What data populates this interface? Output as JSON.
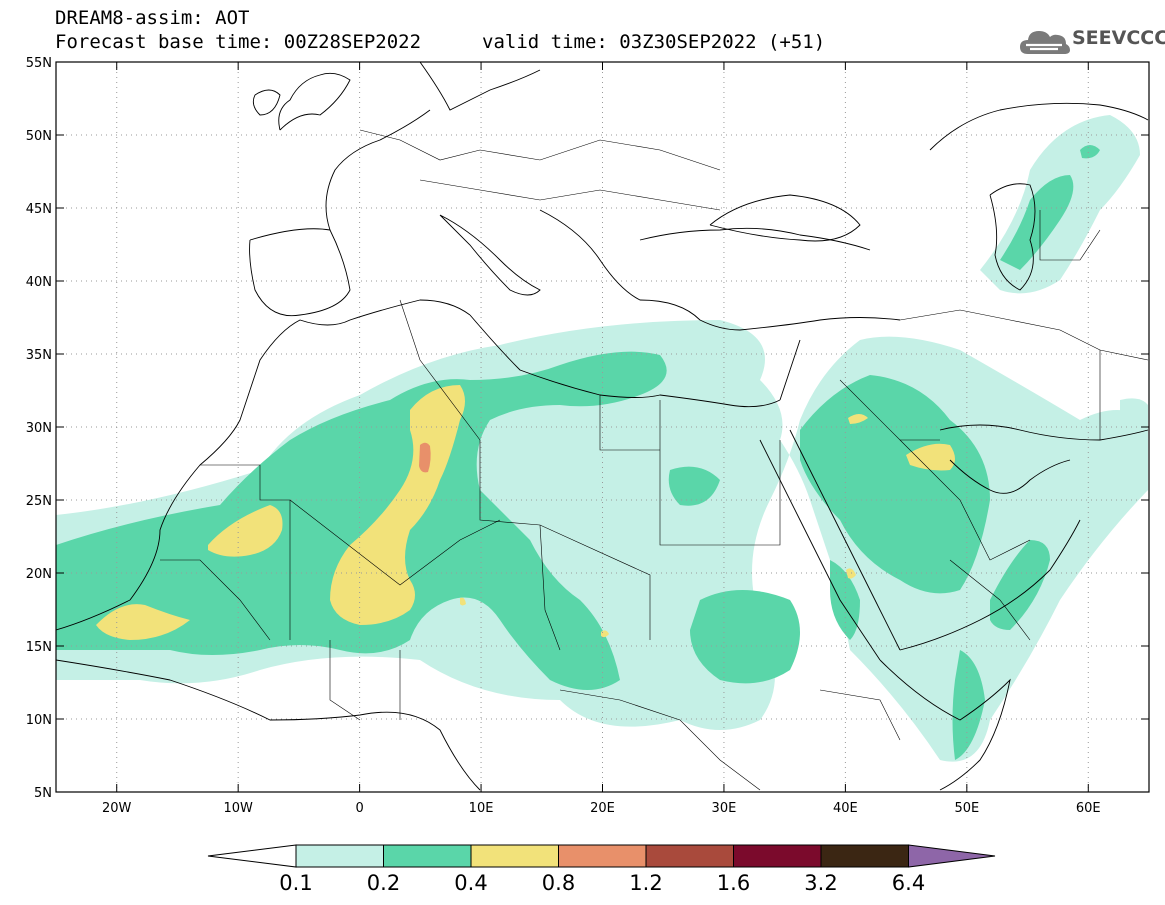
{
  "header": {
    "title_line1": "DREAM8-assim: AOT",
    "title_line2": "Forecast base time: 00Z28SEP2022",
    "title_line3": "valid time: 03Z30SEP2022 (+51)"
  },
  "logo": {
    "text": "SEEVCCC",
    "icon": "cloud-icon"
  },
  "map": {
    "lon_range": [
      -25,
      65
    ],
    "lat_range": [
      5,
      55
    ],
    "x_ticks": [
      {
        "lon": -20,
        "label": "20W"
      },
      {
        "lon": -10,
        "label": "10W"
      },
      {
        "lon": 0,
        "label": "0"
      },
      {
        "lon": 10,
        "label": "10E"
      },
      {
        "lon": 20,
        "label": "20E"
      },
      {
        "lon": 30,
        "label": "30E"
      },
      {
        "lon": 40,
        "label": "40E"
      },
      {
        "lon": 50,
        "label": "50E"
      },
      {
        "lon": 60,
        "label": "60E"
      }
    ],
    "y_ticks": [
      {
        "lat": 55,
        "label": "55N"
      },
      {
        "lat": 50,
        "label": "50N"
      },
      {
        "lat": 45,
        "label": "45N"
      },
      {
        "lat": 40,
        "label": "40N"
      },
      {
        "lat": 35,
        "label": "35N"
      },
      {
        "lat": 30,
        "label": "30N"
      },
      {
        "lat": 25,
        "label": "25N"
      },
      {
        "lat": 20,
        "label": "20N"
      },
      {
        "lat": 15,
        "label": "15N"
      },
      {
        "lat": 10,
        "label": "10N"
      },
      {
        "lat": 5,
        "label": "5N"
      }
    ],
    "gridlines": true
  },
  "colorbar": {
    "levels": [
      "0.1",
      "0.2",
      "0.4",
      "0.8",
      "1.2",
      "1.6",
      "3.2",
      "6.4"
    ],
    "colors": [
      "#c5f0e6",
      "#5ad6a9",
      "#f2e27a",
      "#e8906a",
      "#a94a3c",
      "#7b0a2c",
      "#3b2613"
    ],
    "under_color": "#ffffff",
    "over_color": "#8e66a8"
  }
}
